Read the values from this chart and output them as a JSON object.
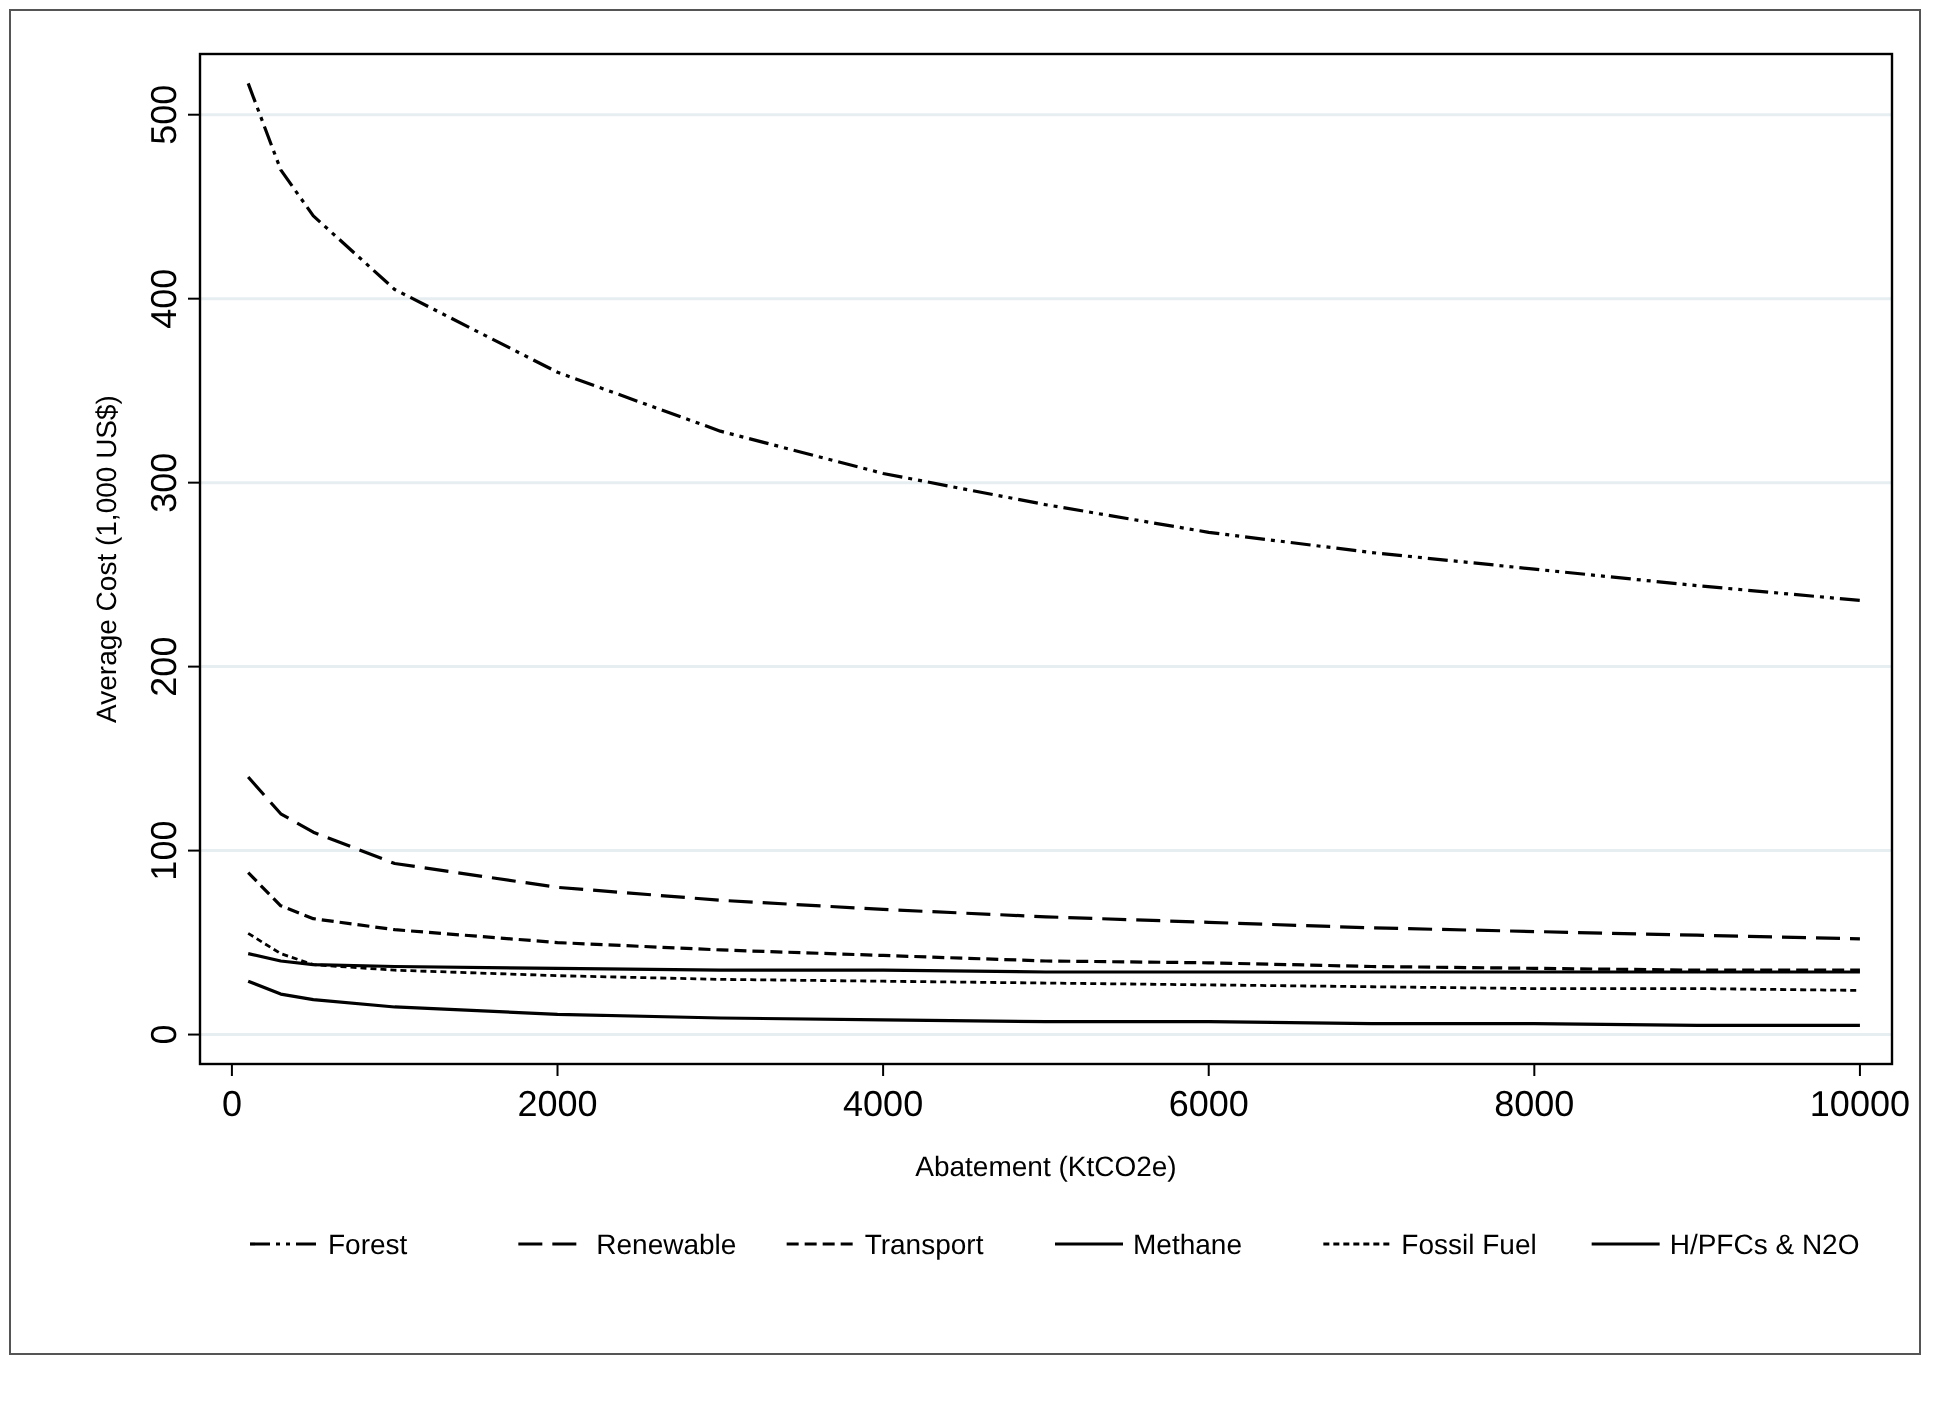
{
  "chart_data": {
    "type": "line",
    "xlabel": "Abatement (KtCO2e)",
    "ylabel": "Average Cost (1,000 US$)",
    "x": [
      100,
      300,
      500,
      1000,
      2000,
      3000,
      4000,
      5000,
      6000,
      7000,
      8000,
      9000,
      10000
    ],
    "series": [
      {
        "name": "Forest",
        "color": "#000000",
        "line_style": "dashdot",
        "values": [
          517,
          470,
          445,
          405,
          360,
          328,
          305,
          288,
          273,
          262,
          253,
          244,
          236
        ]
      },
      {
        "name": "Renewable",
        "color": "#000000",
        "line_style": "longdash",
        "values": [
          140,
          120,
          110,
          93,
          80,
          73,
          68,
          64,
          61,
          58,
          56,
          54,
          52
        ]
      },
      {
        "name": "Transport",
        "color": "#000000",
        "line_style": "dashed",
        "values": [
          88,
          70,
          63,
          57,
          50,
          46,
          43,
          40,
          39,
          37,
          36,
          35,
          35
        ]
      },
      {
        "name": "Methane",
        "color": "#000000",
        "line_style": "solid",
        "values": [
          44,
          40,
          38,
          37,
          36,
          35,
          35,
          34,
          34,
          34,
          34,
          34,
          34
        ]
      },
      {
        "name": "Fossil Fuel",
        "color": "#000000",
        "line_style": "dotted",
        "values": [
          55,
          44,
          38,
          35,
          32,
          30,
          29,
          28,
          27,
          26,
          25,
          25,
          24
        ]
      },
      {
        "name": "H/PFCs & N2O",
        "color": "#000000",
        "line_style": "solid",
        "values": [
          29,
          22,
          19,
          15,
          11,
          9,
          8,
          7,
          7,
          6,
          6,
          5,
          5
        ]
      }
    ],
    "xlim": [
      -196,
      10197
    ],
    "xticks": [
      0,
      2000,
      4000,
      6000,
      8000,
      10000
    ],
    "ylim": [
      -16,
      533
    ],
    "yticks": [
      0,
      100,
      200,
      300,
      400,
      500
    ],
    "grid": "y",
    "legend": "bottom"
  }
}
